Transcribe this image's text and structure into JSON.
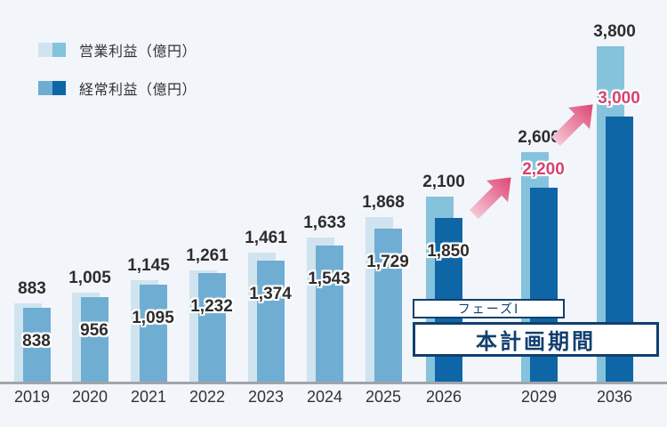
{
  "background_color": "#f2f5fa",
  "legend": {
    "items": [
      {
        "label": "営業利益（億円）",
        "swatch": [
          "#cfe4ef",
          "#85c3dc"
        ]
      },
      {
        "label": "経常利益（億円）",
        "swatch": [
          "#6fadd2",
          "#0e66a7"
        ]
      }
    ]
  },
  "chart_data": {
    "type": "bar",
    "title": "",
    "xlabel": "",
    "ylabel": "億円",
    "unit": "億円",
    "grid": false,
    "legend_position": "top-left",
    "ylim": [
      0,
      4300
    ],
    "categories": [
      "2019",
      "2020",
      "2021",
      "2022",
      "2023",
      "2024",
      "2025",
      "2026",
      "2029",
      "2036"
    ],
    "series": [
      {
        "name": "営業利益（億円）",
        "values": [
          883,
          1005,
          1145,
          1261,
          1461,
          1633,
          1868,
          2100,
          2600,
          3800
        ],
        "labels": [
          "883",
          "1,005",
          "1,145",
          "1,261",
          "1,461",
          "1,633",
          "1,868",
          "2,100",
          "2,600",
          "3,800"
        ]
      },
      {
        "name": "経常利益（億円）",
        "values": [
          838,
          956,
          1095,
          1232,
          1374,
          1543,
          1729,
          1850,
          2200,
          3000
        ],
        "labels": [
          "838",
          "956",
          "1,095",
          "1,232",
          "1,374",
          "1,543",
          "1,729",
          "1,850",
          "2,200",
          "3,000"
        ]
      }
    ],
    "highlight_start_index": 7,
    "pink_value_indices": [
      8,
      9
    ],
    "colors": {
      "operating_normal": "#cfe4ef",
      "operating_highlight": "#85c3dc",
      "ordinary_normal": "#6fadd2",
      "ordinary_highlight": "#0e66a7",
      "value_label": "#2d2d2d",
      "pink_label": "#d6436f",
      "axis": "#a1a5aa"
    }
  },
  "annotations": {
    "phase1_label": "フェーズⅠ",
    "plan_period_label": "本計画期間",
    "arrow_gradient": {
      "from": "#f5c6d5",
      "to": "#de4674"
    }
  }
}
